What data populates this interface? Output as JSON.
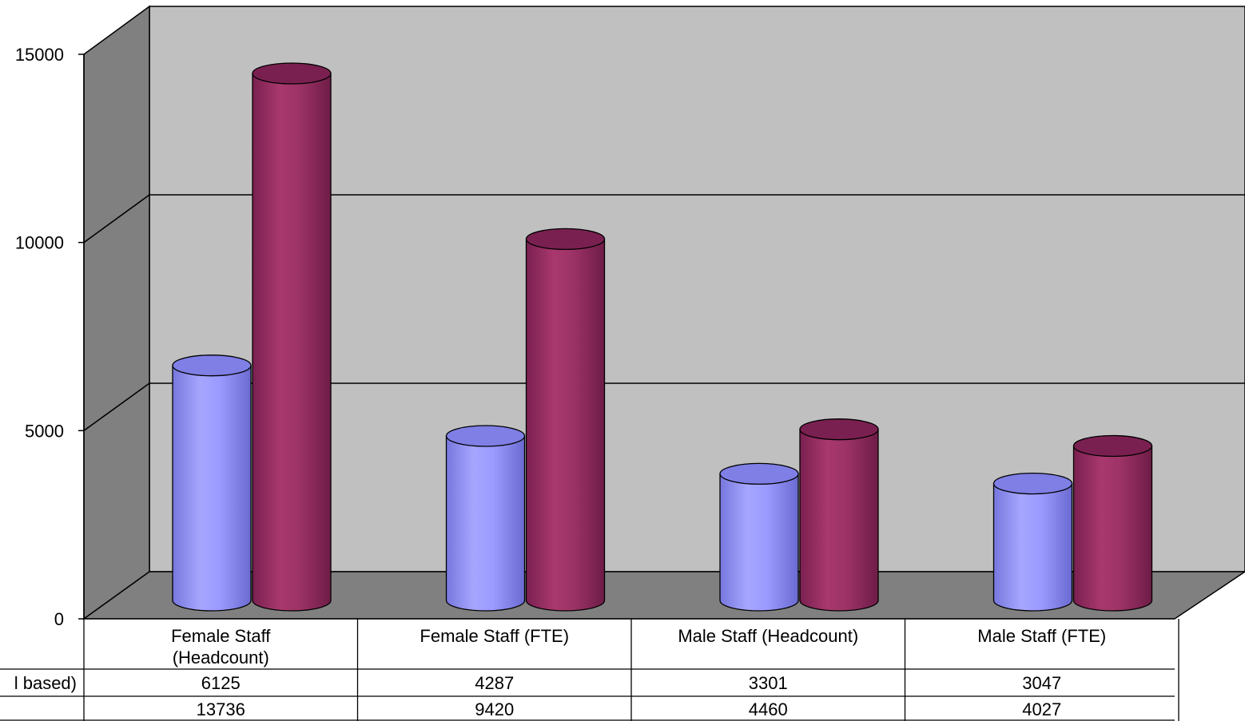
{
  "chart_data": {
    "type": "bar",
    "title": "",
    "xlabel": "",
    "ylabel": "",
    "ylim": [
      0,
      15000
    ],
    "yticks": [
      0,
      5000,
      10000,
      15000
    ],
    "grid": true,
    "legend": "data-table-rows",
    "categories": [
      [
        "Female Staff",
        "(Headcount)"
      ],
      [
        "Female Staff (FTE)"
      ],
      [
        "Male Staff (Headcount)"
      ],
      [
        "Male Staff (FTE)"
      ]
    ],
    "series": [
      {
        "name": "l based)",
        "color": "#9999ff",
        "values": [
          6125,
          4287,
          3301,
          3047
        ]
      },
      {
        "name": "",
        "color": "#993366",
        "values": [
          13736,
          9420,
          4460,
          4027
        ]
      }
    ],
    "colors": {
      "wall": "#c0c0c0",
      "side_wall": "#808080",
      "floor": "#808080"
    }
  }
}
